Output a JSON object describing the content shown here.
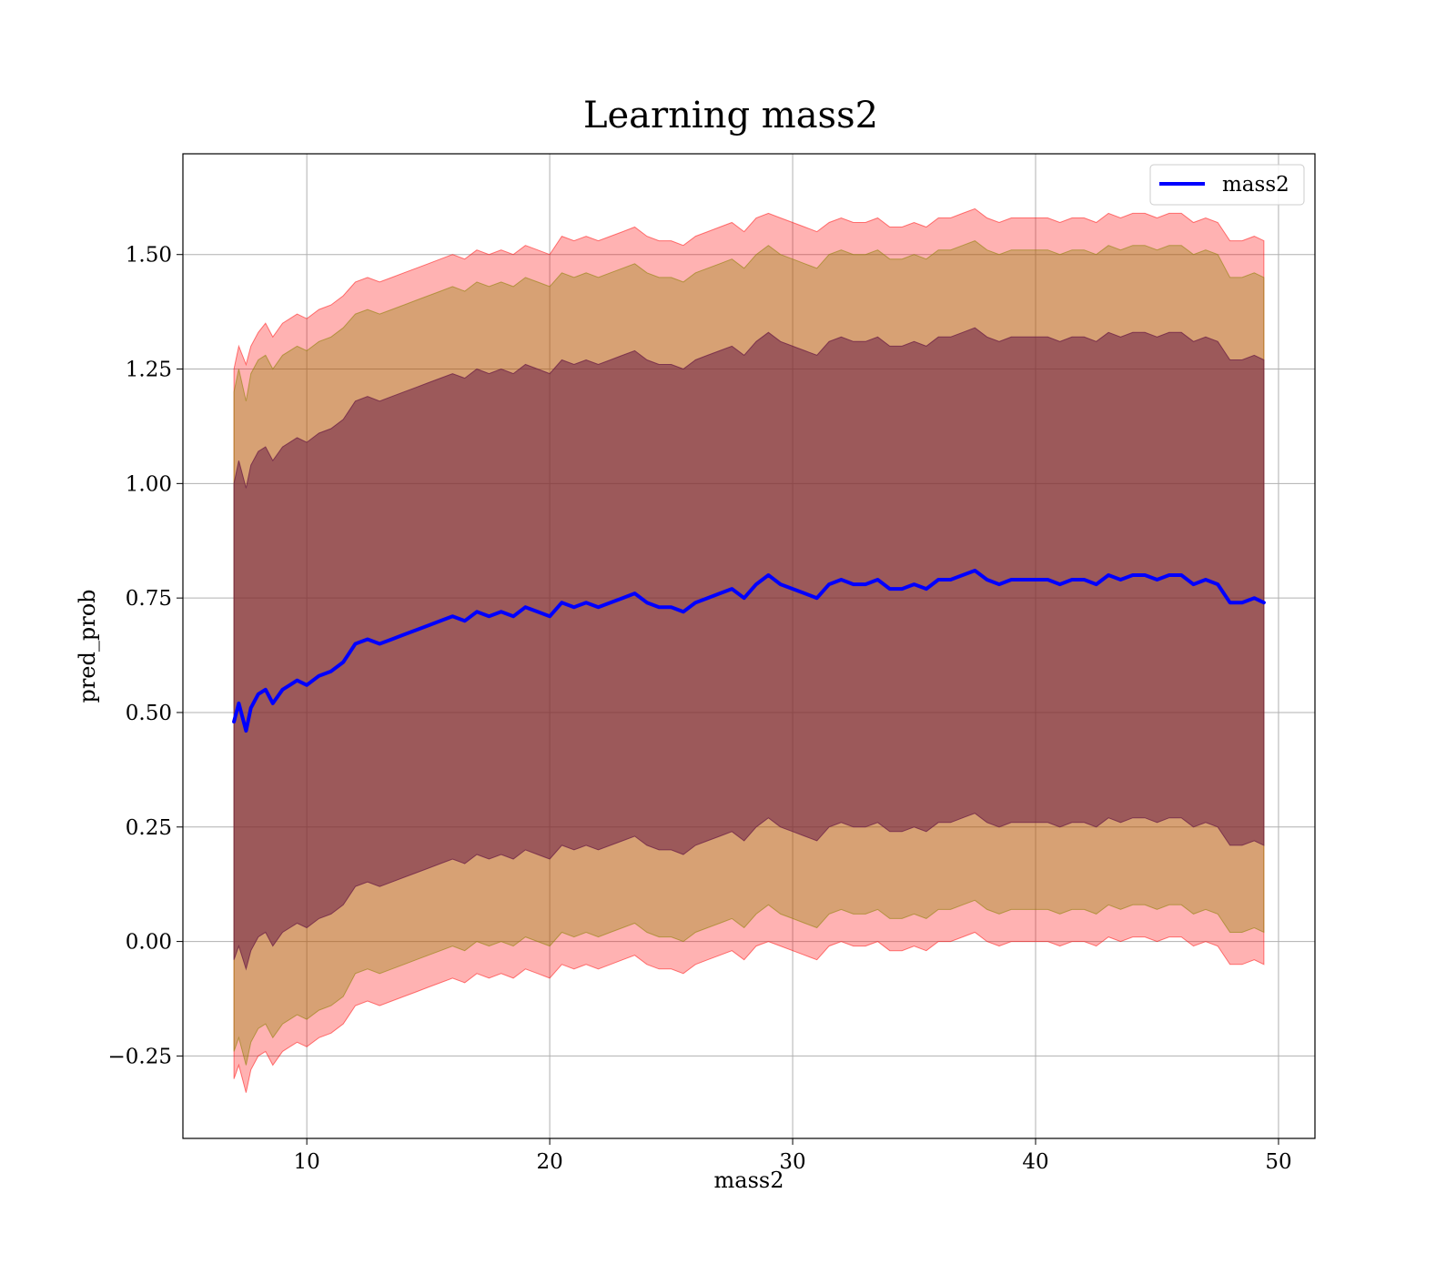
{
  "chart_data": {
    "type": "area",
    "title": "Learning mass2",
    "xlabel": "mass2",
    "ylabel": "pred_prob",
    "xlim": [
      4.9,
      51.5
    ],
    "ylim": [
      -0.43,
      1.72
    ],
    "grid": true,
    "legend_position": "top-right",
    "xticks": [
      10,
      20,
      30,
      40,
      50
    ],
    "xtick_labels": [
      "10",
      "20",
      "30",
      "40",
      "50"
    ],
    "yticks": [
      -0.25,
      0.0,
      0.25,
      0.5,
      0.75,
      1.0,
      1.25,
      1.5
    ],
    "ytick_labels": [
      "−0.25",
      "0.00",
      "0.25",
      "0.50",
      "0.75",
      "1.00",
      "1.25",
      "1.50"
    ],
    "x": [
      7.0,
      7.2,
      7.5,
      7.7,
      8.0,
      8.3,
      8.6,
      9.0,
      9.3,
      9.6,
      10.0,
      10.5,
      11.0,
      11.5,
      12.0,
      12.5,
      13.0,
      13.5,
      14.0,
      14.5,
      15.0,
      15.5,
      16.0,
      16.5,
      17.0,
      17.5,
      18.0,
      18.5,
      19.0,
      19.5,
      20.0,
      20.5,
      21.0,
      21.5,
      22.0,
      22.5,
      23.0,
      23.5,
      24.0,
      24.5,
      25.0,
      25.5,
      26.0,
      26.5,
      27.0,
      27.5,
      28.0,
      28.5,
      29.0,
      29.5,
      30.0,
      30.5,
      31.0,
      31.5,
      32.0,
      32.5,
      33.0,
      33.5,
      34.0,
      34.5,
      35.0,
      35.5,
      36.0,
      36.5,
      37.0,
      37.5,
      38.0,
      38.5,
      39.0,
      39.5,
      40.0,
      40.5,
      41.0,
      41.5,
      42.0,
      42.5,
      43.0,
      43.5,
      44.0,
      44.5,
      45.0,
      45.5,
      46.0,
      46.5,
      47.0,
      47.5,
      48.0,
      48.5,
      49.0,
      49.4
    ],
    "series": [
      {
        "name": "mass2",
        "color": "#0000ff",
        "values": [
          0.48,
          0.52,
          0.46,
          0.51,
          0.54,
          0.55,
          0.52,
          0.55,
          0.56,
          0.57,
          0.56,
          0.58,
          0.59,
          0.61,
          0.65,
          0.66,
          0.65,
          0.66,
          0.67,
          0.68,
          0.69,
          0.7,
          0.71,
          0.7,
          0.72,
          0.71,
          0.72,
          0.71,
          0.73,
          0.72,
          0.71,
          0.74,
          0.73,
          0.74,
          0.73,
          0.74,
          0.75,
          0.76,
          0.74,
          0.73,
          0.73,
          0.72,
          0.74,
          0.75,
          0.76,
          0.77,
          0.75,
          0.78,
          0.8,
          0.78,
          0.77,
          0.76,
          0.75,
          0.78,
          0.79,
          0.78,
          0.78,
          0.79,
          0.77,
          0.77,
          0.78,
          0.77,
          0.79,
          0.79,
          0.8,
          0.81,
          0.79,
          0.78,
          0.79,
          0.79,
          0.79,
          0.79,
          0.78,
          0.79,
          0.79,
          0.78,
          0.8,
          0.79,
          0.8,
          0.8,
          0.79,
          0.8,
          0.8,
          0.78,
          0.79,
          0.78,
          0.74,
          0.74,
          0.75,
          0.74
        ],
        "bands": [
          {
            "color": "#ff0000",
            "opacity": 0.3,
            "upper": [
              1.25,
              1.3,
              1.26,
              1.3,
              1.33,
              1.35,
              1.32,
              1.35,
              1.36,
              1.37,
              1.36,
              1.38,
              1.39,
              1.41,
              1.44,
              1.45,
              1.44,
              1.45,
              1.46,
              1.47,
              1.48,
              1.49,
              1.5,
              1.49,
              1.51,
              1.5,
              1.51,
              1.5,
              1.52,
              1.51,
              1.5,
              1.54,
              1.53,
              1.54,
              1.53,
              1.54,
              1.55,
              1.56,
              1.54,
              1.53,
              1.53,
              1.52,
              1.54,
              1.55,
              1.56,
              1.57,
              1.55,
              1.58,
              1.59,
              1.58,
              1.57,
              1.56,
              1.55,
              1.57,
              1.58,
              1.57,
              1.57,
              1.58,
              1.56,
              1.56,
              1.57,
              1.56,
              1.58,
              1.58,
              1.59,
              1.6,
              1.58,
              1.57,
              1.58,
              1.58,
              1.58,
              1.58,
              1.57,
              1.58,
              1.58,
              1.57,
              1.59,
              1.58,
              1.59,
              1.59,
              1.58,
              1.59,
              1.59,
              1.57,
              1.58,
              1.57,
              1.53,
              1.53,
              1.54,
              1.53
            ],
            "lower": [
              -0.3,
              -0.27,
              -0.33,
              -0.28,
              -0.25,
              -0.24,
              -0.27,
              -0.24,
              -0.23,
              -0.22,
              -0.23,
              -0.21,
              -0.2,
              -0.18,
              -0.14,
              -0.13,
              -0.14,
              -0.13,
              -0.12,
              -0.11,
              -0.1,
              -0.09,
              -0.08,
              -0.09,
              -0.07,
              -0.08,
              -0.07,
              -0.08,
              -0.06,
              -0.07,
              -0.08,
              -0.05,
              -0.06,
              -0.05,
              -0.06,
              -0.05,
              -0.04,
              -0.03,
              -0.05,
              -0.06,
              -0.06,
              -0.07,
              -0.05,
              -0.04,
              -0.03,
              -0.02,
              -0.04,
              -0.01,
              0.0,
              -0.01,
              -0.02,
              -0.03,
              -0.04,
              -0.01,
              0.0,
              -0.01,
              -0.01,
              0.0,
              -0.02,
              -0.02,
              -0.01,
              -0.02,
              0.0,
              0.0,
              0.01,
              0.02,
              0.0,
              -0.01,
              0.0,
              0.0,
              0.0,
              0.0,
              -0.01,
              0.0,
              0.0,
              -0.01,
              0.01,
              0.0,
              0.01,
              0.01,
              0.0,
              0.01,
              0.01,
              -0.01,
              0.0,
              -0.01,
              -0.05,
              -0.05,
              -0.04,
              -0.05
            ]
          },
          {
            "color": "#8b8000",
            "opacity": 0.35,
            "upper": [
              1.2,
              1.25,
              1.18,
              1.24,
              1.27,
              1.28,
              1.25,
              1.28,
              1.29,
              1.3,
              1.29,
              1.31,
              1.32,
              1.34,
              1.37,
              1.38,
              1.37,
              1.38,
              1.39,
              1.4,
              1.41,
              1.42,
              1.43,
              1.42,
              1.44,
              1.43,
              1.44,
              1.43,
              1.45,
              1.44,
              1.43,
              1.46,
              1.45,
              1.46,
              1.45,
              1.46,
              1.47,
              1.48,
              1.46,
              1.45,
              1.45,
              1.44,
              1.46,
              1.47,
              1.48,
              1.49,
              1.47,
              1.5,
              1.52,
              1.5,
              1.49,
              1.48,
              1.47,
              1.5,
              1.51,
              1.5,
              1.5,
              1.51,
              1.49,
              1.49,
              1.5,
              1.49,
              1.51,
              1.51,
              1.52,
              1.53,
              1.51,
              1.5,
              1.51,
              1.51,
              1.51,
              1.51,
              1.5,
              1.51,
              1.51,
              1.5,
              1.52,
              1.51,
              1.52,
              1.52,
              1.51,
              1.52,
              1.52,
              1.5,
              1.51,
              1.5,
              1.45,
              1.45,
              1.46,
              1.45
            ],
            "lower": [
              -0.24,
              -0.21,
              -0.27,
              -0.22,
              -0.19,
              -0.18,
              -0.21,
              -0.18,
              -0.17,
              -0.16,
              -0.17,
              -0.15,
              -0.14,
              -0.12,
              -0.07,
              -0.06,
              -0.07,
              -0.06,
              -0.05,
              -0.04,
              -0.03,
              -0.02,
              -0.01,
              -0.02,
              0.0,
              -0.01,
              0.0,
              -0.01,
              0.01,
              0.0,
              -0.01,
              0.02,
              0.01,
              0.02,
              0.01,
              0.02,
              0.03,
              0.04,
              0.02,
              0.01,
              0.01,
              0.0,
              0.02,
              0.03,
              0.04,
              0.05,
              0.03,
              0.06,
              0.08,
              0.06,
              0.05,
              0.04,
              0.03,
              0.06,
              0.07,
              0.06,
              0.06,
              0.07,
              0.05,
              0.05,
              0.06,
              0.05,
              0.07,
              0.07,
              0.08,
              0.09,
              0.07,
              0.06,
              0.07,
              0.07,
              0.07,
              0.07,
              0.06,
              0.07,
              0.07,
              0.06,
              0.08,
              0.07,
              0.08,
              0.08,
              0.07,
              0.08,
              0.08,
              0.06,
              0.07,
              0.06,
              0.02,
              0.02,
              0.03,
              0.02
            ]
          },
          {
            "color": "#6b1f45",
            "opacity": 0.55,
            "upper": [
              1.0,
              1.05,
              0.99,
              1.04,
              1.07,
              1.08,
              1.05,
              1.08,
              1.09,
              1.1,
              1.09,
              1.11,
              1.12,
              1.14,
              1.18,
              1.19,
              1.18,
              1.19,
              1.2,
              1.21,
              1.22,
              1.23,
              1.24,
              1.23,
              1.25,
              1.24,
              1.25,
              1.24,
              1.26,
              1.25,
              1.24,
              1.27,
              1.26,
              1.27,
              1.26,
              1.27,
              1.28,
              1.29,
              1.27,
              1.26,
              1.26,
              1.25,
              1.27,
              1.28,
              1.29,
              1.3,
              1.28,
              1.31,
              1.33,
              1.31,
              1.3,
              1.29,
              1.28,
              1.31,
              1.32,
              1.31,
              1.31,
              1.32,
              1.3,
              1.3,
              1.31,
              1.3,
              1.32,
              1.32,
              1.33,
              1.34,
              1.32,
              1.31,
              1.32,
              1.32,
              1.32,
              1.32,
              1.31,
              1.32,
              1.32,
              1.31,
              1.33,
              1.32,
              1.33,
              1.33,
              1.32,
              1.33,
              1.33,
              1.31,
              1.32,
              1.31,
              1.27,
              1.27,
              1.28,
              1.27
            ],
            "lower": [
              -0.04,
              -0.01,
              -0.06,
              -0.02,
              0.01,
              0.02,
              -0.01,
              0.02,
              0.03,
              0.04,
              0.03,
              0.05,
              0.06,
              0.08,
              0.12,
              0.13,
              0.12,
              0.13,
              0.14,
              0.15,
              0.16,
              0.17,
              0.18,
              0.17,
              0.19,
              0.18,
              0.19,
              0.18,
              0.2,
              0.19,
              0.18,
              0.21,
              0.2,
              0.21,
              0.2,
              0.21,
              0.22,
              0.23,
              0.21,
              0.2,
              0.2,
              0.19,
              0.21,
              0.22,
              0.23,
              0.24,
              0.22,
              0.25,
              0.27,
              0.25,
              0.24,
              0.23,
              0.22,
              0.25,
              0.26,
              0.25,
              0.25,
              0.26,
              0.24,
              0.24,
              0.25,
              0.24,
              0.26,
              0.26,
              0.27,
              0.28,
              0.26,
              0.25,
              0.26,
              0.26,
              0.26,
              0.26,
              0.25,
              0.26,
              0.26,
              0.25,
              0.27,
              0.26,
              0.27,
              0.27,
              0.26,
              0.27,
              0.27,
              0.25,
              0.26,
              0.25,
              0.21,
              0.21,
              0.22,
              0.21
            ]
          }
        ]
      }
    ]
  }
}
